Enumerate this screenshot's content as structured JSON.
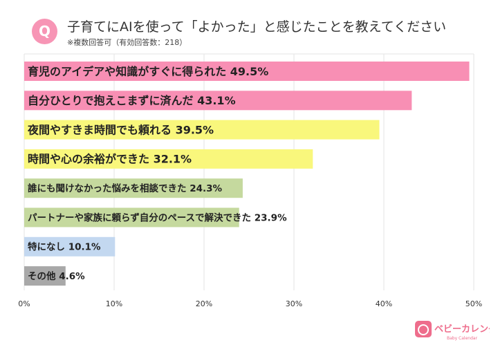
{
  "header": {
    "badge": "Q",
    "title": "子育てにAIを使って「よかった」と感じたことを教えてください",
    "subtitle": "※複数回答可（有効回答数：218）"
  },
  "chart_data": {
    "type": "bar",
    "orientation": "horizontal",
    "categories": [
      "育児のアイデアや知識がすぐに得られた",
      "自分ひとりで抱えこまずに済んだ",
      "夜間やすきま時間でも頼れる",
      "時間や心の余裕ができた",
      "誰にも聞けなかった悩みを相談できた",
      "パートナーや家族に頼らず自分のペースで解決できた",
      "特になし",
      "その他"
    ],
    "values": [
      49.5,
      43.1,
      39.5,
      32.1,
      24.3,
      23.9,
      10.1,
      4.6
    ],
    "value_labels": [
      "49.5%",
      "43.1%",
      "39.5%",
      "32.1%",
      "24.3%",
      "23.9%",
      "10.1%",
      "4.6%"
    ],
    "colors": [
      "#f88fb4",
      "#f88fb4",
      "#f9f77c",
      "#f9f77c",
      "#c5d99e",
      "#c5d99e",
      "#c3d8f0",
      "#a8a8a8"
    ],
    "xlim": [
      0,
      50
    ],
    "xticks": [
      "0%",
      "10%",
      "20%",
      "30%",
      "40%",
      "50%"
    ],
    "grid": true
  },
  "logo": {
    "name": "ベビーカレンダー",
    "sub": "Baby Calendar",
    "color": "#ee6d8c"
  }
}
